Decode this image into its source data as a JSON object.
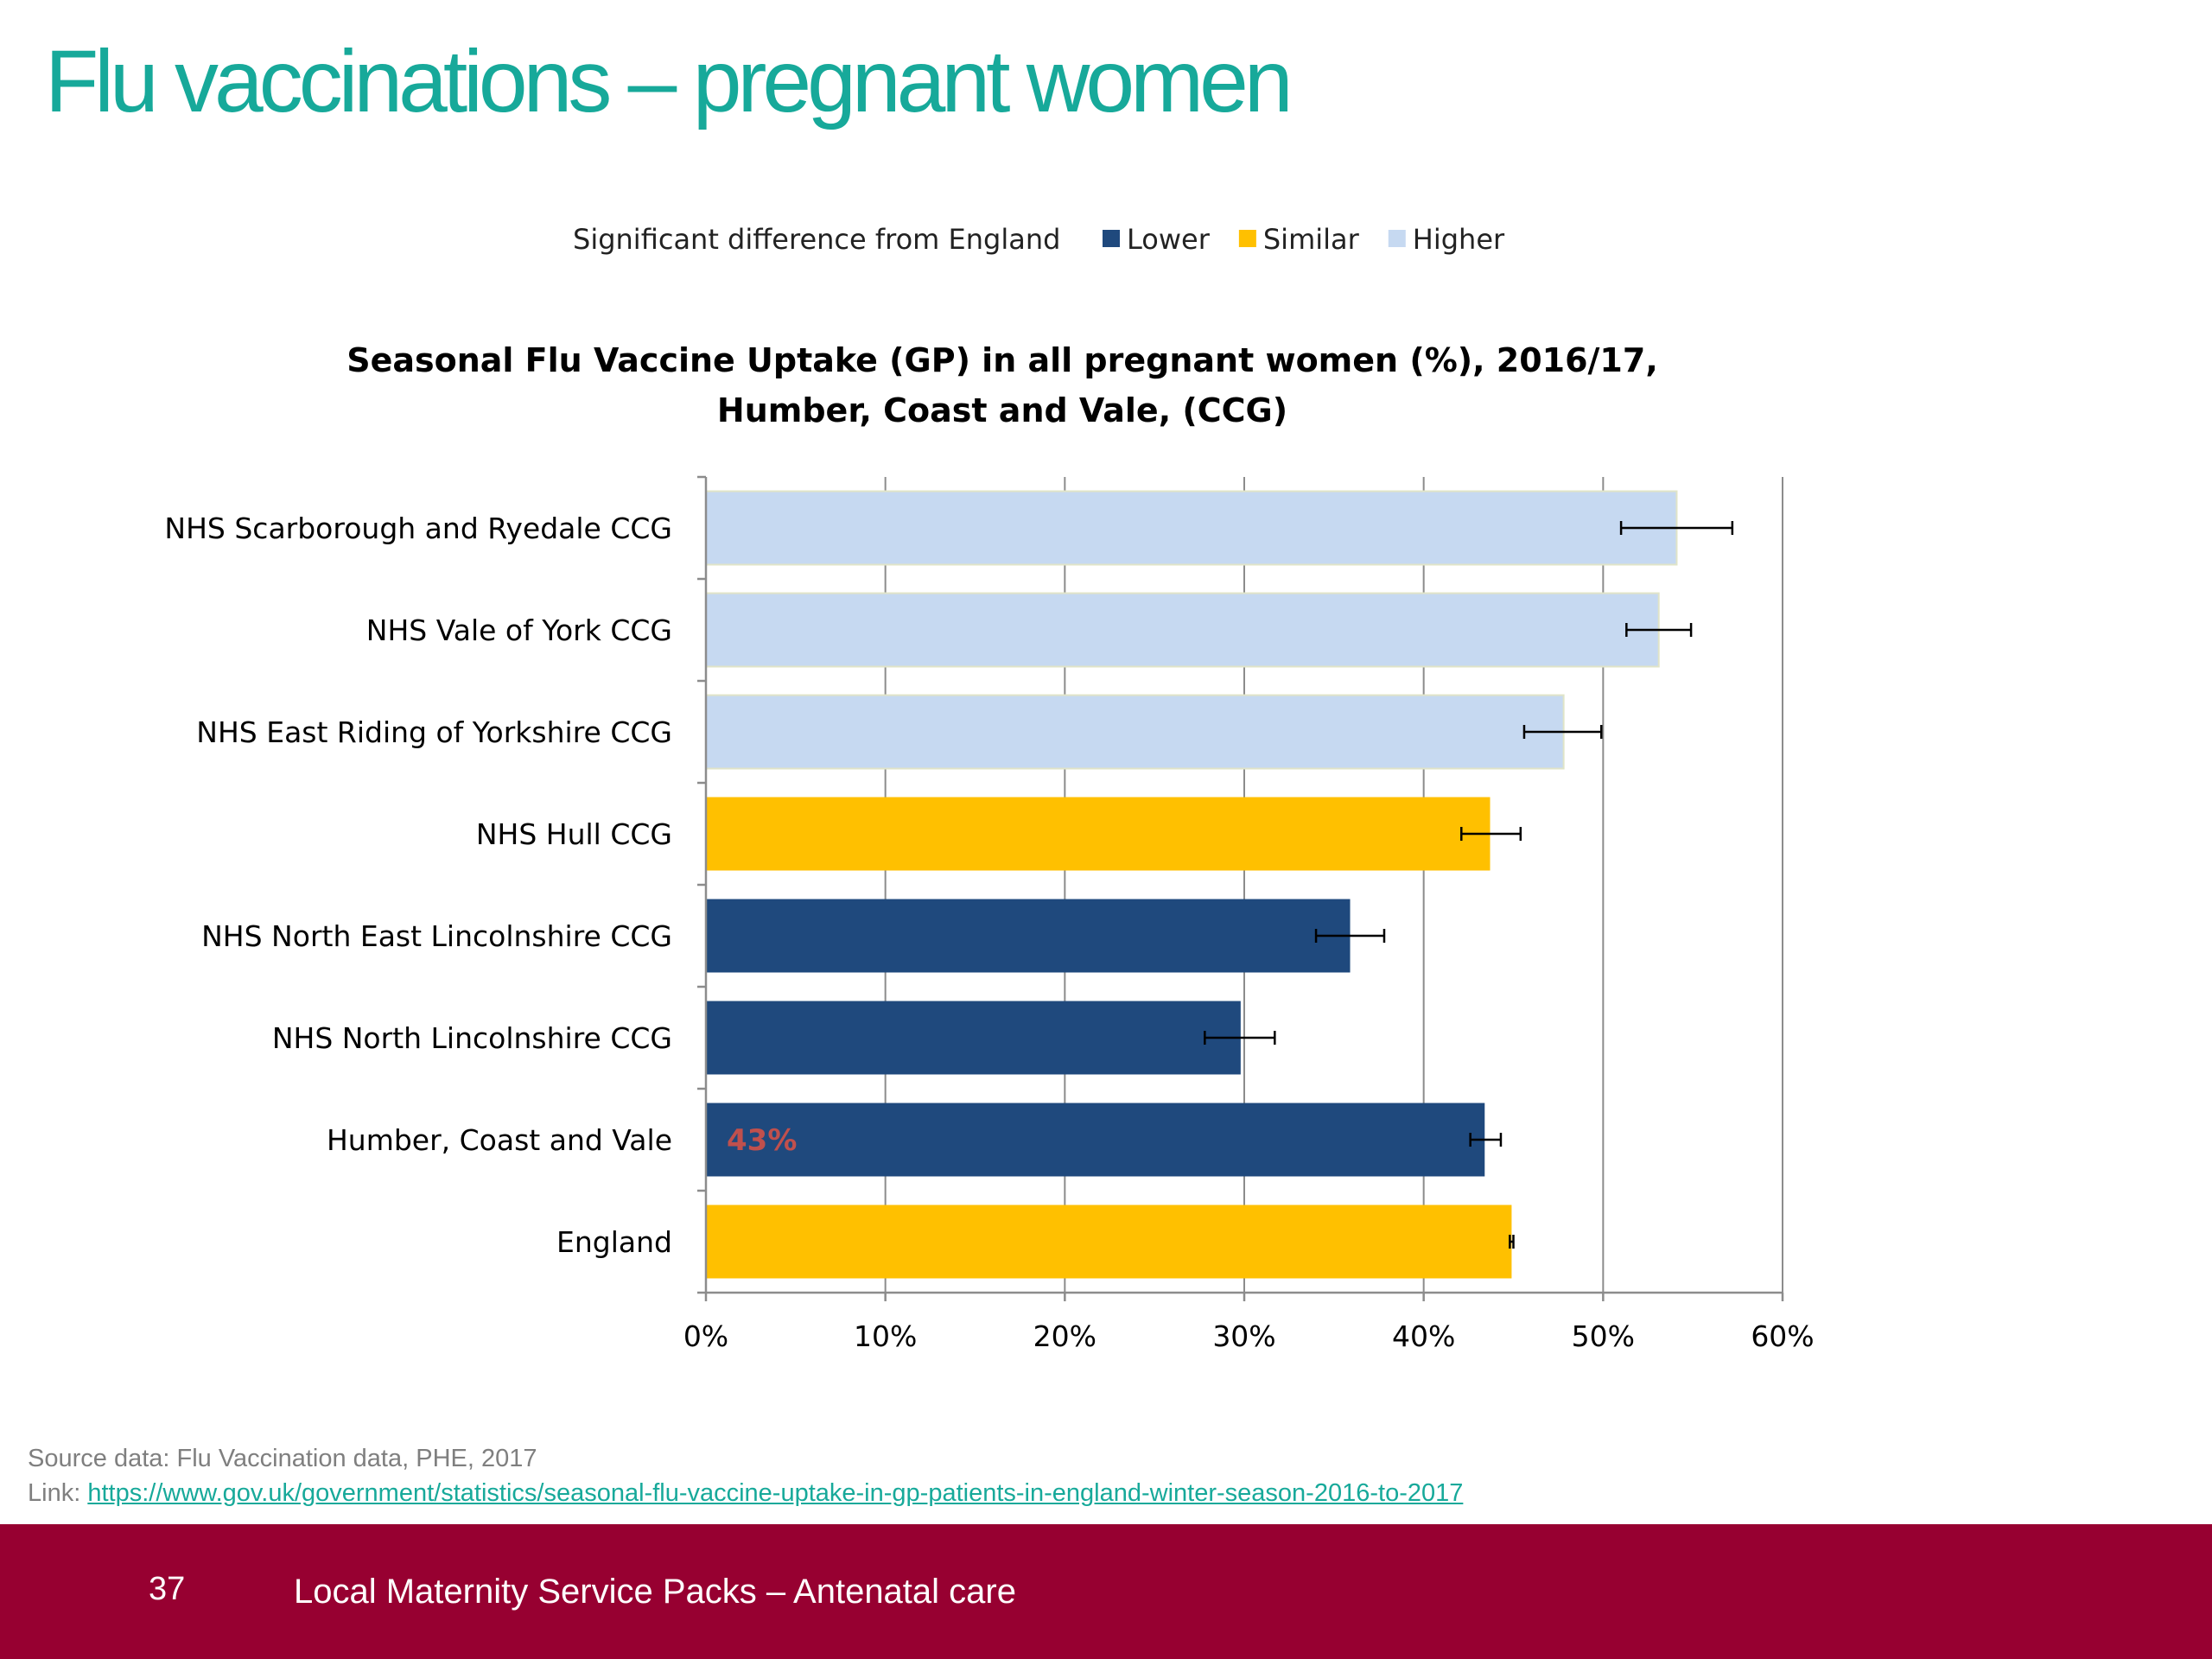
{
  "page": {
    "title": "Flu vaccinations – pregnant women",
    "source_label": "Source data: Flu Vaccination data, PHE, 2017",
    "link_prefix": "Link: ",
    "link_url": "https://www.gov.uk/government/statistics/seasonal-flu-vaccine-uptake-in-gp-patients-in-england-winter-season-2016-to-2017",
    "footer": {
      "page_number": "37",
      "text": "Local Maternity Service Packs – Antenatal care",
      "background": "#970031"
    }
  },
  "chart_data": {
    "type": "bar",
    "orientation": "horizontal",
    "title_lines": [
      "Seasonal Flu Vaccine Uptake (GP) in all pregnant women (%), 2016/17,",
      "Humber, Coast and Vale, (CCG)"
    ],
    "legend": {
      "title": "Significant difference from England",
      "placement": "top",
      "items": [
        {
          "key": "Lower",
          "label": "Lower",
          "color": "#1f497d"
        },
        {
          "key": "Similar",
          "label": "Similar",
          "color": "#ffc000"
        },
        {
          "key": "Higher",
          "label": "Higher",
          "color": "#c6d9f1"
        }
      ]
    },
    "categories": [
      "NHS Scarborough and Ryedale CCG",
      "NHS Vale of York CCG",
      "NHS East Riding of Yorkshire CCG",
      "NHS Hull CCG",
      "NHS North East Lincolnshire CCG",
      "NHS North Lincolnshire CCG",
      "Humber, Coast and Vale",
      "England"
    ],
    "values": [
      54.1,
      53.1,
      47.8,
      43.7,
      35.9,
      29.8,
      43.4,
      44.9
    ],
    "ci_lower": [
      51.0,
      51.3,
      45.6,
      42.1,
      34.0,
      27.8,
      42.6,
      44.8
    ],
    "ci_upper": [
      57.2,
      54.9,
      49.9,
      45.4,
      37.8,
      31.7,
      44.3,
      45.0
    ],
    "significance": [
      "Higher",
      "Higher",
      "Higher",
      "Similar",
      "Lower",
      "Lower",
      "Lower",
      "Similar"
    ],
    "data_labels": [
      {
        "category": "Humber, Coast and Vale",
        "text": "43%",
        "color": "#c0504d"
      }
    ],
    "xlim": [
      0,
      60
    ],
    "xticks": [
      "0%",
      "10%",
      "20%",
      "30%",
      "40%",
      "50%",
      "60%"
    ],
    "grid": "vertical",
    "xlabel": "",
    "ylabel": ""
  }
}
